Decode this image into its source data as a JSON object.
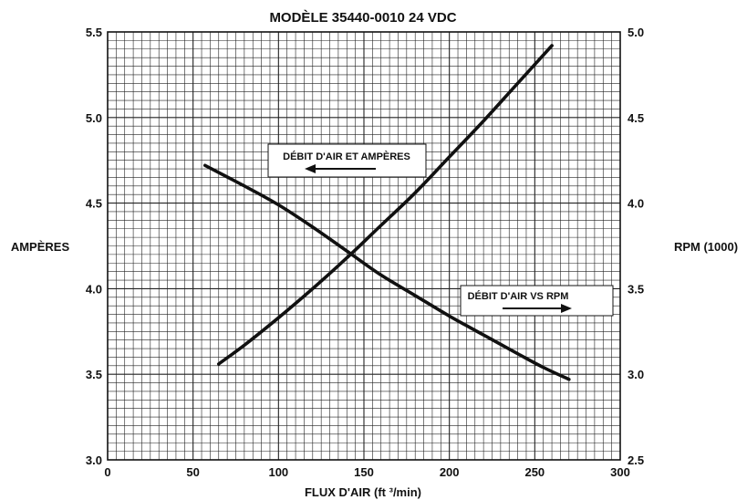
{
  "chart_data": {
    "type": "line",
    "title": "MODÈLE 35440-0010 24 VDC",
    "xlabel": "FLUX D'AIR (ft ³/min)",
    "ylabel": "AMPÈRES",
    "y2label": "RPM (1000)",
    "xlim": [
      0,
      300
    ],
    "ylim": [
      3.0,
      5.5
    ],
    "y2lim": [
      2.5,
      5.0
    ],
    "x_ticks": [
      "0",
      "50",
      "100",
      "150",
      "200",
      "250",
      "300"
    ],
    "y_ticks": [
      "3.0",
      "3.5",
      "4.0",
      "4.5",
      "5.0",
      "5.5"
    ],
    "y2_ticks": [
      "2.5",
      "3.0",
      "3.5",
      "4.0",
      "4.5",
      "5.0"
    ],
    "grid": true,
    "series": [
      {
        "axis": "left",
        "points": [
          [
            57,
            4.72
          ],
          [
            80,
            4.6
          ],
          [
            100,
            4.49
          ],
          [
            120,
            4.36
          ],
          [
            140,
            4.22
          ],
          [
            160,
            4.08
          ],
          [
            180,
            3.96
          ],
          [
            200,
            3.84
          ],
          [
            220,
            3.73
          ],
          [
            240,
            3.62
          ],
          [
            255,
            3.54
          ],
          [
            270,
            3.47
          ]
        ]
      },
      {
        "axis": "right",
        "points": [
          [
            65,
            3.06
          ],
          [
            80,
            3.17
          ],
          [
            100,
            3.33
          ],
          [
            120,
            3.5
          ],
          [
            140,
            3.68
          ],
          [
            160,
            3.87
          ],
          [
            180,
            4.06
          ],
          [
            200,
            4.27
          ],
          [
            220,
            4.48
          ],
          [
            240,
            4.7
          ],
          [
            260,
            4.92
          ]
        ]
      }
    ],
    "annotations": [
      {
        "text": "DÉBIT D'AIR ET AMPÈRES",
        "arrow": "left"
      },
      {
        "text": "DÉBIT D'AIR VS RPM",
        "arrow": "right"
      }
    ]
  }
}
